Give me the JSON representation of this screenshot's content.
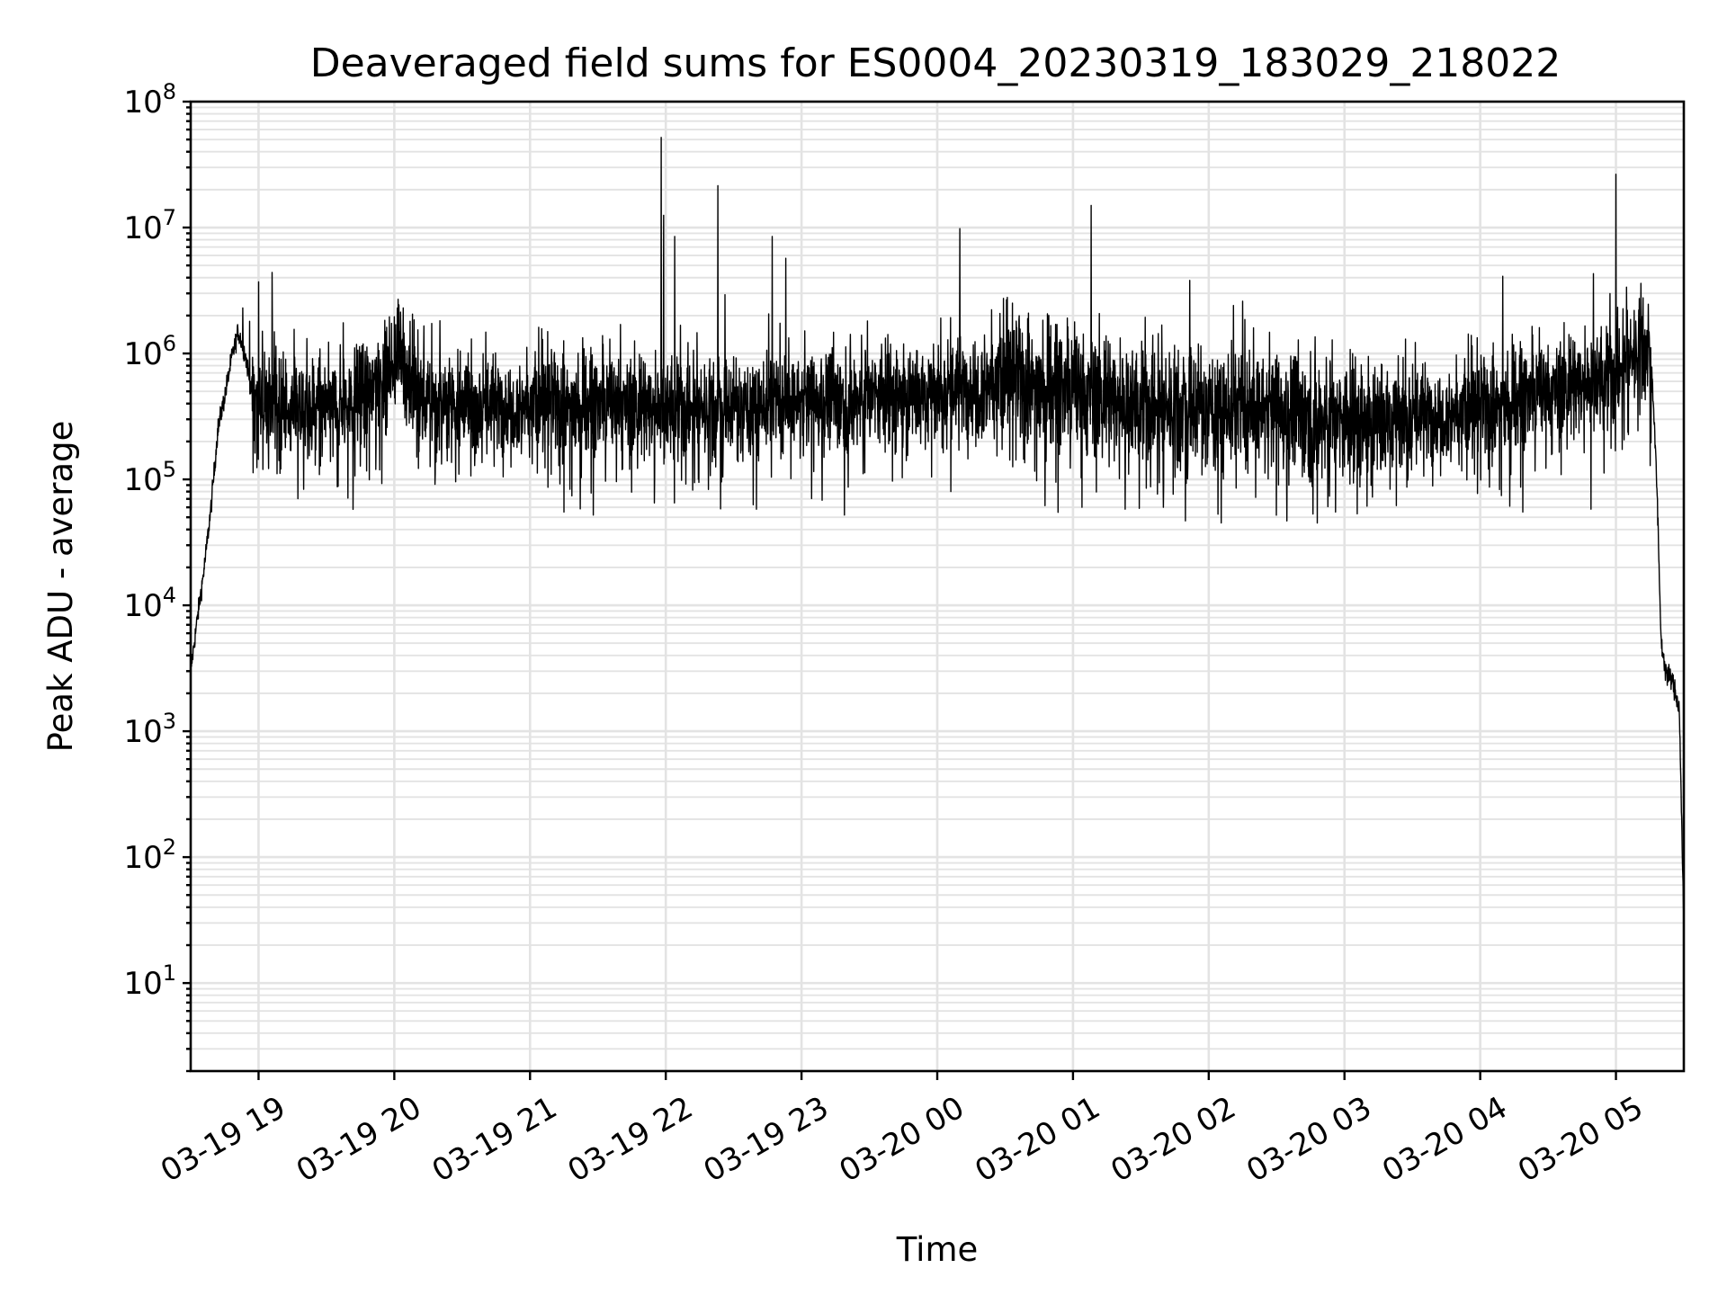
{
  "chart_data": {
    "type": "line",
    "title": "Deaveraged field sums for ES0004_20230319_183029_218022",
    "xlabel": "Time",
    "ylabel": "Peak ADU - average",
    "yscale": "log",
    "ylim": [
      2,
      100000000
    ],
    "xlim": [
      "2023-03-19 18:30",
      "2023-03-20 05:30"
    ],
    "grid": true,
    "grid_minor": true,
    "series_color": "#000000",
    "x_tick_labels": [
      "03-19 19",
      "03-19 20",
      "03-19 21",
      "03-19 22",
      "03-19 23",
      "03-20 00",
      "03-20 01",
      "03-20 02",
      "03-20 03",
      "03-20 04",
      "03-20 05"
    ],
    "y_tick_labels": [
      "10^1",
      "10^2",
      "10^3",
      "10^4",
      "10^5",
      "10^6",
      "10^7",
      "10^8"
    ],
    "series": [
      {
        "x_start": "2023-03-19 18:30",
        "x_end": "2023-03-20 05:30",
        "samples_per_hour": 500,
        "profile": [
          {
            "x": "2023-03-19 18:30",
            "y": 3000
          },
          {
            "x": "2023-03-19 18:33",
            "y": 8000
          },
          {
            "x": "2023-03-19 18:36",
            "y": 20000
          },
          {
            "x": "2023-03-19 18:39",
            "y": 60000
          },
          {
            "x": "2023-03-19 18:42",
            "y": 250000
          },
          {
            "x": "2023-03-19 18:45",
            "y": 450000
          },
          {
            "x": "2023-03-19 18:48",
            "y": 900000
          },
          {
            "x": "2023-03-19 18:51",
            "y": 1500000
          },
          {
            "x": "2023-03-19 18:54",
            "y": 1000000
          },
          {
            "x": "2023-03-19 18:57",
            "y": 500000
          },
          {
            "x": "2023-03-19 19:10",
            "y": 330000
          },
          {
            "x": "2023-03-19 19:40",
            "y": 400000
          },
          {
            "x": "2023-03-19 19:57",
            "y": 700000
          },
          {
            "x": "2023-03-19 20:03",
            "y": 1100000
          },
          {
            "x": "2023-03-19 20:08",
            "y": 450000
          },
          {
            "x": "2023-03-19 20:40",
            "y": 400000
          },
          {
            "x": "2023-03-19 21:40",
            "y": 380000
          },
          {
            "x": "2023-03-19 22:30",
            "y": 380000
          },
          {
            "x": "2023-03-19 23:30",
            "y": 450000
          },
          {
            "x": "2023-03-20 00:00",
            "y": 500000
          },
          {
            "x": "2023-03-20 00:30",
            "y": 620000
          },
          {
            "x": "2023-03-20 01:30",
            "y": 400000
          },
          {
            "x": "2023-03-20 02:30",
            "y": 350000
          },
          {
            "x": "2023-03-20 03:00",
            "y": 280000
          },
          {
            "x": "2023-03-20 03:30",
            "y": 330000
          },
          {
            "x": "2023-03-20 04:00",
            "y": 350000
          },
          {
            "x": "2023-03-20 04:40",
            "y": 550000
          },
          {
            "x": "2023-03-20 05:00",
            "y": 700000
          },
          {
            "x": "2023-03-20 05:13",
            "y": 1300000
          },
          {
            "x": "2023-03-20 05:16",
            "y": 700000
          },
          {
            "x": "2023-03-20 05:18",
            "y": 100000
          },
          {
            "x": "2023-03-20 05:20",
            "y": 5000
          },
          {
            "x": "2023-03-20 05:22",
            "y": 3000
          },
          {
            "x": "2023-03-20 05:25",
            "y": 2500
          },
          {
            "x": "2023-03-20 05:28",
            "y": 1500
          },
          {
            "x": "2023-03-20 05:30",
            "y": 30
          }
        ],
        "spikes": [
          {
            "x": "2023-03-19 18:53",
            "y": 2300000
          },
          {
            "x": "2023-03-19 18:56",
            "y": 1800000
          },
          {
            "x": "2023-03-19 19:00",
            "y": 3700000
          },
          {
            "x": "2023-03-19 19:06",
            "y": 4400000
          },
          {
            "x": "2023-03-19 19:12",
            "y": 900000
          },
          {
            "x": "2023-03-19 20:04",
            "y": 2300000
          },
          {
            "x": "2023-03-19 20:07",
            "y": 1800000
          },
          {
            "x": "2023-03-19 21:40",
            "y": 1700000
          },
          {
            "x": "2023-03-19 21:58",
            "y": 52000000
          },
          {
            "x": "2023-03-19 21:59",
            "y": 12500000
          },
          {
            "x": "2023-03-19 22:04",
            "y": 8500000
          },
          {
            "x": "2023-03-19 22:23",
            "y": 21500000
          },
          {
            "x": "2023-03-19 22:47",
            "y": 8500000
          },
          {
            "x": "2023-03-19 22:53",
            "y": 5700000
          },
          {
            "x": "2023-03-20 00:10",
            "y": 9800000
          },
          {
            "x": "2023-03-20 01:08",
            "y": 15000000
          },
          {
            "x": "2023-03-20 02:15",
            "y": 2600000
          },
          {
            "x": "2023-03-20 04:10",
            "y": 4100000
          },
          {
            "x": "2023-03-20 04:50",
            "y": 4300000
          },
          {
            "x": "2023-03-20 05:00",
            "y": 26500000
          },
          {
            "x": "2023-03-20 05:05",
            "y": 2200000
          },
          {
            "x": "2023-03-20 05:11",
            "y": 3600000
          }
        ],
        "dips": [
          {
            "x": "2023-03-19 21:15",
            "y": 55000
          },
          {
            "x": "2023-03-19 21:28",
            "y": 52000
          },
          {
            "x": "2023-03-19 21:55",
            "y": 65000
          },
          {
            "x": "2023-03-19 23:19",
            "y": 52000
          },
          {
            "x": "2023-03-20 00:06",
            "y": 80000
          },
          {
            "x": "2023-03-20 01:04",
            "y": 60000
          },
          {
            "x": "2023-03-20 01:23",
            "y": 58000
          },
          {
            "x": "2023-03-20 01:40",
            "y": 60000
          },
          {
            "x": "2023-03-20 02:48",
            "y": 45000
          },
          {
            "x": "2023-03-20 02:56",
            "y": 55000
          },
          {
            "x": "2023-03-20 04:49",
            "y": 58000
          }
        ]
      }
    ]
  }
}
